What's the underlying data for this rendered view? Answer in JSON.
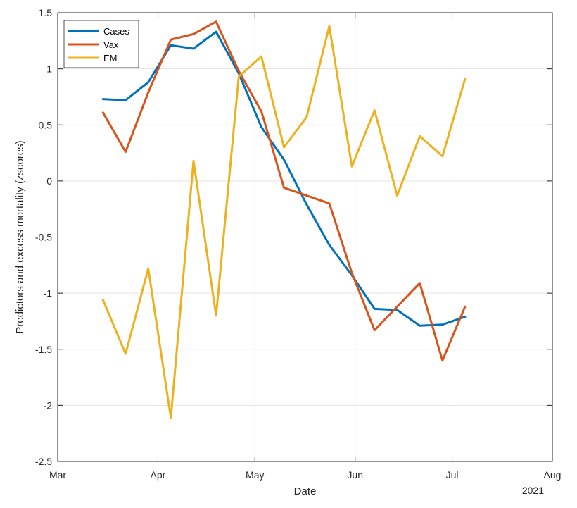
{
  "chart_data": {
    "type": "line",
    "xlabel": "Date",
    "ylabel": "Predictors and excess mortality (zscores)",
    "year_label": "2021",
    "xlim": [
      "2021-03-01",
      "2021-08-01"
    ],
    "ylim": [
      -2.5,
      1.5
    ],
    "grid": true,
    "legend_position": "top-left",
    "x_ticks": [
      {
        "date": "2021-03-01",
        "label": "Mar"
      },
      {
        "date": "2021-04-01",
        "label": "Apr"
      },
      {
        "date": "2021-05-01",
        "label": "May"
      },
      {
        "date": "2021-06-01",
        "label": "Jun"
      },
      {
        "date": "2021-07-01",
        "label": "Jul"
      },
      {
        "date": "2021-08-01",
        "label": "Aug"
      }
    ],
    "y_ticks": [
      {
        "value": 1.5,
        "label": "1.5"
      },
      {
        "value": 1,
        "label": "1"
      },
      {
        "value": 0.5,
        "label": "0.5"
      },
      {
        "value": 0,
        "label": "0"
      },
      {
        "value": -0.5,
        "label": "-0.5"
      },
      {
        "value": -1,
        "label": "-1"
      },
      {
        "value": -1.5,
        "label": "-1.5"
      },
      {
        "value": -2,
        "label": "-2"
      },
      {
        "value": -2.5,
        "label": "-2.5"
      }
    ],
    "x": [
      "2021-03-15",
      "2021-03-22",
      "2021-03-29",
      "2021-04-05",
      "2021-04-12",
      "2021-04-19",
      "2021-04-26",
      "2021-05-03",
      "2021-05-10",
      "2021-05-17",
      "2021-05-24",
      "2021-05-31",
      "2021-06-07",
      "2021-06-14",
      "2021-06-21",
      "2021-06-28",
      "2021-07-05"
    ],
    "series": [
      {
        "name": "Cases",
        "color": "#0072BD",
        "values": [
          0.73,
          0.72,
          0.88,
          1.21,
          1.18,
          1.33,
          0.96,
          0.48,
          0.19,
          -0.21,
          -0.57,
          -0.84,
          -1.14,
          -1.15,
          -1.29,
          -1.28,
          -1.21
        ]
      },
      {
        "name": "Vax",
        "color": "#D95319",
        "values": [
          0.61,
          0.26,
          0.79,
          1.26,
          1.31,
          1.42,
          0.98,
          0.62,
          -0.06,
          -0.13,
          -0.2,
          -0.82,
          -1.33,
          -1.12,
          -0.91,
          -1.6,
          -1.12
        ]
      },
      {
        "name": "EM",
        "color": "#EDB120",
        "values": [
          -1.06,
          -1.54,
          -0.78,
          -2.11,
          0.18,
          -1.2,
          0.93,
          1.11,
          0.3,
          0.57,
          1.38,
          0.13,
          0.63,
          -0.13,
          0.4,
          0.22,
          0.91
        ]
      }
    ]
  }
}
